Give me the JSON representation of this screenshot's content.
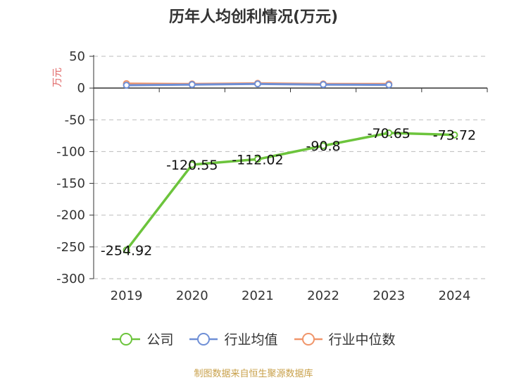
{
  "chart_data": {
    "type": "line",
    "title": "历年人均创利情况(万元)",
    "ylabel": "万元",
    "categories": [
      "2019",
      "2020",
      "2021",
      "2022",
      "2023",
      "2024"
    ],
    "ylim": [
      -300,
      50
    ],
    "yticks": [
      50,
      0,
      -50,
      -100,
      -150,
      -200,
      -250,
      -300
    ],
    "grid": true,
    "legend_position": "bottom",
    "series": [
      {
        "name": "公司",
        "color": "#6cc43c",
        "values": [
          -254.92,
          -120.55,
          -112.02,
          -90.8,
          -70.65,
          -73.72
        ],
        "labels": [
          "-254.92",
          "-120.55",
          "-112.02",
          "-90.8",
          "-70.65",
          "-73.72"
        ]
      },
      {
        "name": "行业均值",
        "color": "#6f8fd6",
        "values": [
          4.5,
          5.5,
          6.5,
          5.5,
          5.0,
          null
        ]
      },
      {
        "name": "行业中位数",
        "color": "#f0956a",
        "values": [
          7.0,
          6.5,
          7.5,
          6.5,
          6.5,
          null
        ]
      }
    ],
    "source": "制图数据来自恒生聚源数据库"
  }
}
